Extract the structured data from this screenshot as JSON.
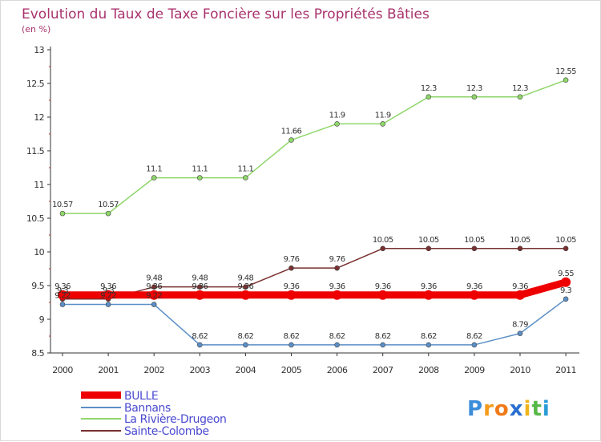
{
  "chart_data": {
    "type": "line",
    "title": "Evolution du Taux de Taxe Foncière sur les Propriétés Bâties",
    "subtitle": "(en %)",
    "xlabel": "",
    "ylabel": "(en %)",
    "ylim": [
      8.5,
      13
    ],
    "yticks": [
      "8.5",
      "9",
      "9.5",
      "10",
      "10.5",
      "11",
      "11.5",
      "12",
      "12.5",
      "13"
    ],
    "categories": [
      "2000",
      "2001",
      "2002",
      "2003",
      "2004",
      "2005",
      "2006",
      "2007",
      "2008",
      "2009",
      "2010",
      "2011"
    ],
    "series": [
      {
        "name": "BULLE",
        "color": "#ee0000",
        "values": [
          9.36,
          9.36,
          9.36,
          9.36,
          9.36,
          9.36,
          9.36,
          9.36,
          9.36,
          9.36,
          9.36,
          9.55
        ],
        "labels": [
          "9.36",
          "9.36",
          "9.36",
          "9.36",
          "9.36",
          "9.36",
          "9.36",
          "9.36",
          "9.36",
          "9.36",
          "9.36",
          "9.55"
        ]
      },
      {
        "name": "Bannans",
        "color": "#5b8fc7",
        "values": [
          9.22,
          9.22,
          9.22,
          8.62,
          8.62,
          8.62,
          8.62,
          8.62,
          8.62,
          8.62,
          8.79,
          9.3
        ],
        "labels": [
          "9.22",
          "9.22",
          "9.22",
          "8.62",
          "8.62",
          "8.62",
          "8.62",
          "8.62",
          "8.62",
          "8.62",
          "8.79",
          "9.3"
        ]
      },
      {
        "name": "La Rivière-Drugeon",
        "color": "#8fd66a",
        "values": [
          10.57,
          10.57,
          11.1,
          11.1,
          11.1,
          11.66,
          11.9,
          11.9,
          12.3,
          12.3,
          12.3,
          12.55
        ],
        "labels": [
          "10.57",
          "10.57",
          "11.1",
          "11.1",
          "11.1",
          "11.66",
          "11.9",
          "11.9",
          "12.3",
          "12.3",
          "12.3",
          "12.55"
        ]
      },
      {
        "name": "Sainte-Colombe",
        "color": "#7a3030",
        "values": [
          9.3,
          9.3,
          9.48,
          9.48,
          9.48,
          9.76,
          9.76,
          10.05,
          10.05,
          10.05,
          10.05,
          10.05
        ],
        "labels": [
          "9.3",
          "9.3",
          "9.48",
          "9.48",
          "9.48",
          "9.76",
          "9.76",
          "10.05",
          "10.05",
          "10.05",
          "10.05",
          "10.05"
        ]
      }
    ],
    "legend_position": "bottom-left",
    "grid": false
  },
  "brand": {
    "text": "Proxiti",
    "letters": [
      "P",
      "r",
      "o",
      "x",
      "i",
      "t",
      "i"
    ],
    "colors": [
      "#3c8dd9",
      "#f59a1a",
      "#f07a1a",
      "#2a6fcf",
      "#f0b51c",
      "#58b847",
      "#2a9bd6"
    ]
  }
}
